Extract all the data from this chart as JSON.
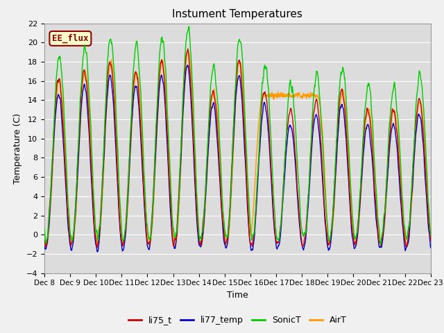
{
  "title": "Instument Temperatures",
  "xlabel": "Time",
  "ylabel": "Temperature (C)",
  "ylim": [
    -4,
    22
  ],
  "annotation": "EE_flux",
  "bg_color": "#dcdcdc",
  "plot_bg": "#dcdcdc",
  "grid_color": "#ffffff",
  "line_colors": {
    "li75_t": "#cc0000",
    "li77_temp": "#0000cc",
    "SonicT": "#00cc00",
    "AirT": "#ff9900"
  },
  "line_width": 1.0,
  "xtick_labels": [
    "Dec 8",
    "Dec 9",
    "Dec 10",
    "Dec 11",
    "Dec 12",
    "Dec 13",
    "Dec 14",
    "Dec 15",
    "Dec 16",
    "Dec 17",
    "Dec 18",
    "Dec 19",
    "Dec 20",
    "Dec 21",
    "Dec 22",
    "Dec 23"
  ],
  "xtick_positions": [
    0,
    24,
    48,
    72,
    96,
    120,
    144,
    168,
    192,
    216,
    240,
    264,
    288,
    312,
    336,
    360
  ],
  "n_points": 1440
}
